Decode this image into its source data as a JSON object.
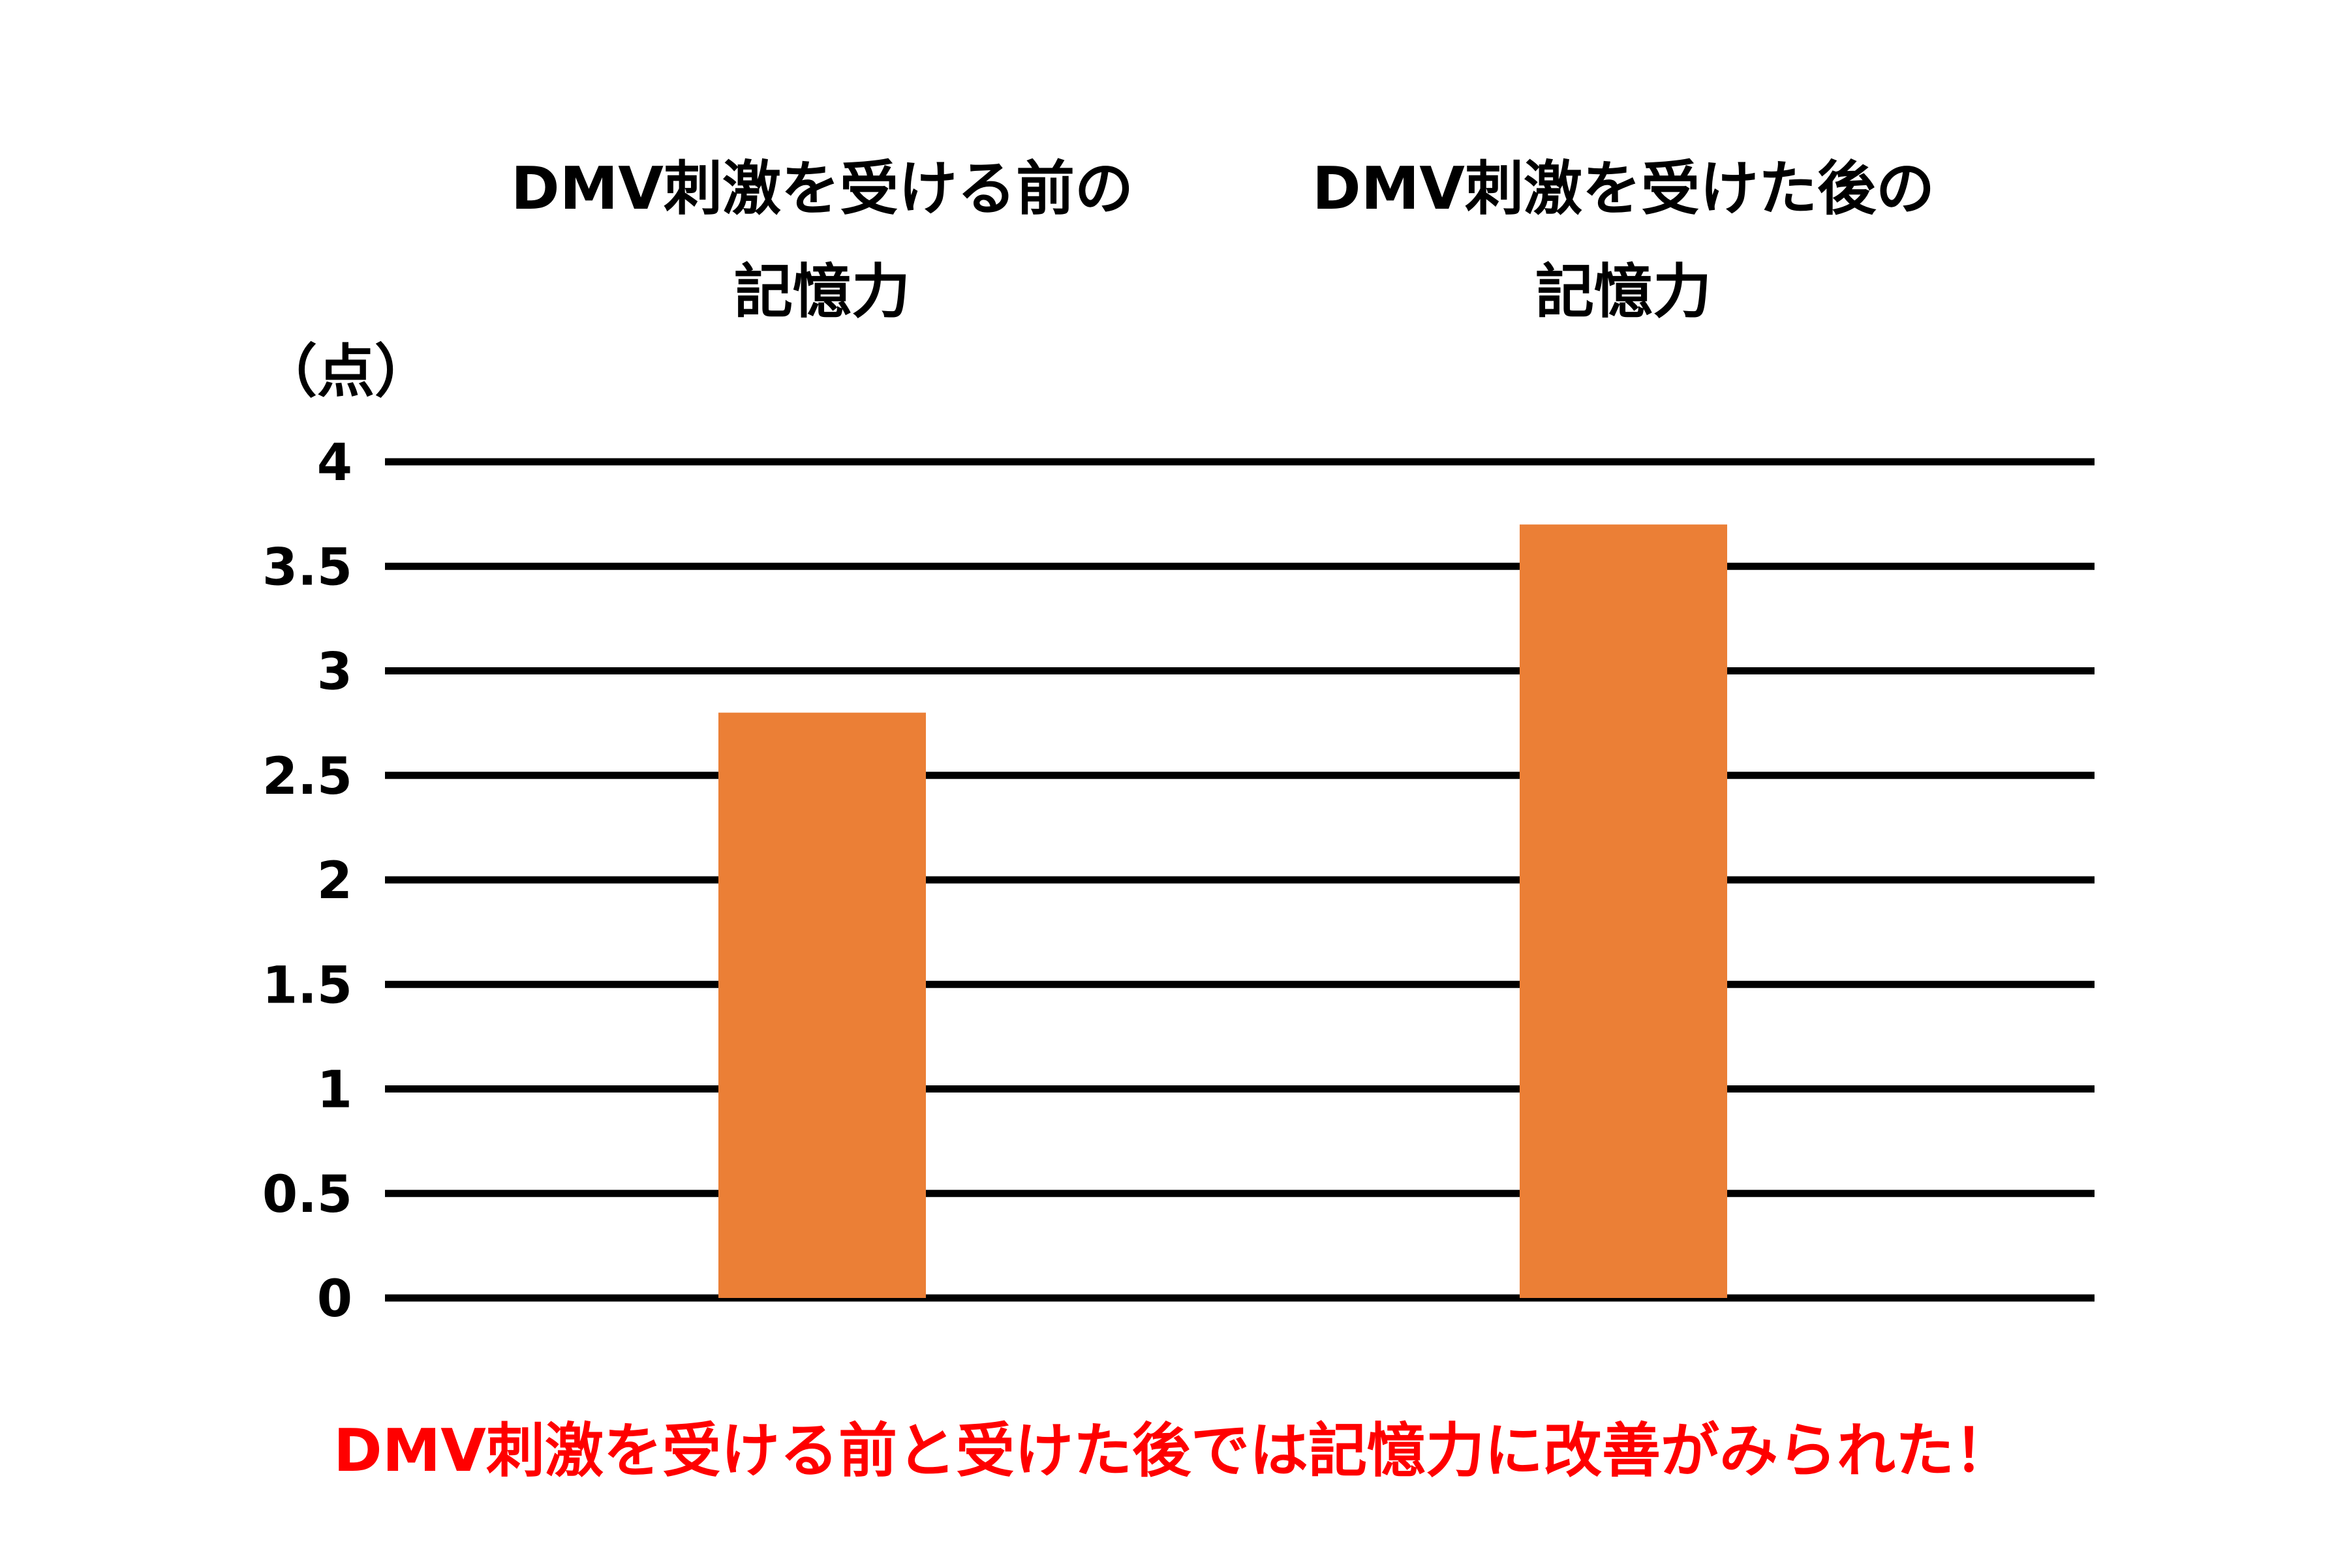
{
  "chart_data": {
    "type": "bar",
    "categories": [
      [
        "DMV刺激を受ける前の",
        "記憶力"
      ],
      [
        "DMV刺激を受けた後の",
        "記憶力"
      ]
    ],
    "values": [
      2.8,
      3.7
    ],
    "ylabel": "（点）",
    "ylim": [
      0,
      4
    ],
    "yticks": [
      "0",
      "0.5",
      "1",
      "1.5",
      "2",
      "2.5",
      "3",
      "3.5",
      "4"
    ],
    "grid": true,
    "bar_color": "#EB7F36",
    "grid_color": "#000000",
    "caption": "DMV刺激を受ける前と受けた後では記憶力に改善がみられた！",
    "caption_color": "#FF0000"
  }
}
